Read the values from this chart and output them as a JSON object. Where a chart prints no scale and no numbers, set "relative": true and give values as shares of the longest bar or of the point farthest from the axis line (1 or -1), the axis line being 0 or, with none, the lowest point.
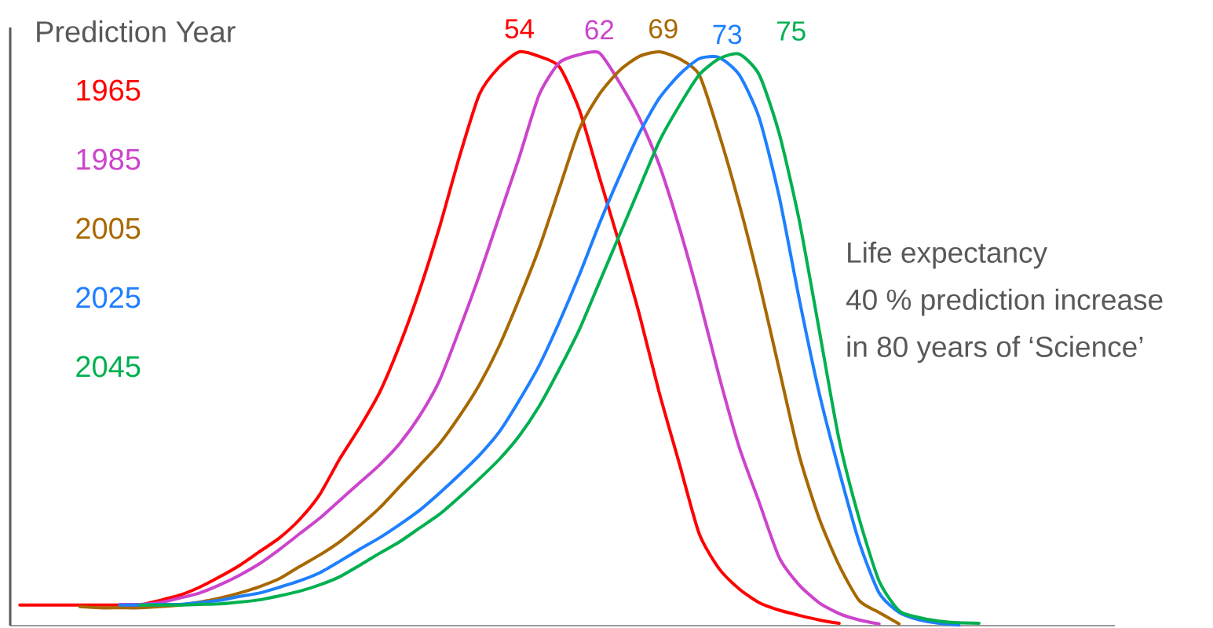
{
  "chart_data": {
    "type": "line",
    "relative": true,
    "legend": "top left",
    "legend_title": "Prediction Year",
    "categories": [
      null,
      null,
      null,
      null,
      null,
      null,
      null,
      null,
      null,
      null,
      null,
      null,
      null,
      null,
      null,
      null,
      null,
      null,
      null,
      null,
      null,
      null,
      null,
      null,
      null,
      null,
      null,
      null,
      null,
      null,
      null,
      null,
      null,
      null,
      null,
      null,
      null,
      null,
      null,
      null,
      null,
      null,
      null,
      null,
      null,
      null,
      null,
      null,
      null
    ],
    "series": [
      {
        "name": "1965",
        "color": "#ff0000",
        "values": [
          0.036,
          0.036,
          0.036,
          0.036,
          0.036,
          0.036,
          0.036,
          0.044,
          0.053,
          0.067,
          0.085,
          0.105,
          0.129,
          0.153,
          0.185,
          0.228,
          0.29,
          0.345,
          0.406,
          0.488,
          0.584,
          0.694,
          0.817,
          0.926,
          0.974,
          1.0,
          0.992,
          0.974,
          0.899,
          0.782,
          0.666,
          0.543,
          0.406,
          0.283,
          0.16,
          0.099,
          0.064,
          0.04,
          0.027,
          0.018,
          0.01,
          0.004,
          null,
          null,
          null,
          null,
          null,
          null,
          null
        ]
      },
      {
        "name": "1985",
        "color": "#cc44cc",
        "values": [
          null,
          null,
          null,
          null,
          null,
          0.037,
          0.037,
          0.04,
          0.048,
          0.057,
          0.071,
          0.088,
          0.108,
          0.133,
          0.16,
          0.187,
          0.218,
          0.249,
          0.28,
          0.317,
          0.365,
          0.427,
          0.516,
          0.611,
          0.714,
          0.817,
          0.926,
          0.981,
          0.995,
          0.998,
          0.947,
          0.885,
          0.803,
          0.694,
          0.57,
          0.434,
          0.311,
          0.215,
          0.119,
          0.071,
          0.04,
          0.021,
          0.01,
          0.003,
          null,
          null,
          null,
          null,
          null
        ]
      },
      {
        "name": "2005",
        "color": "#a86800",
        "values": [
          null,
          null,
          null,
          0.033,
          0.031,
          0.031,
          0.031,
          0.033,
          0.036,
          0.041,
          0.048,
          0.057,
          0.068,
          0.082,
          0.103,
          0.123,
          0.146,
          0.174,
          0.205,
          0.242,
          0.279,
          0.317,
          0.365,
          0.42,
          0.488,
          0.57,
          0.659,
          0.762,
          0.865,
          0.926,
          0.967,
          0.992,
          1.0,
          0.988,
          0.96,
          0.856,
          0.735,
          0.598,
          0.447,
          0.297,
          0.187,
          0.105,
          0.044,
          0.023,
          0.003,
          null,
          null,
          null,
          null
        ]
      },
      {
        "name": "2025",
        "color": "#1e7fff",
        "values": [
          null,
          null,
          null,
          null,
          null,
          0.036,
          0.036,
          0.037,
          0.037,
          0.04,
          0.044,
          0.051,
          0.057,
          0.067,
          0.078,
          0.092,
          0.112,
          0.133,
          0.153,
          0.176,
          0.201,
          0.231,
          0.263,
          0.297,
          0.338,
          0.393,
          0.454,
          0.529,
          0.611,
          0.7,
          0.782,
          0.858,
          0.919,
          0.96,
          0.988,
          0.99,
          0.96,
          0.885,
          0.748,
          0.57,
          0.406,
          0.27,
          0.146,
          0.057,
          0.023,
          0.01,
          0.004,
          0.001,
          null
        ]
      },
      {
        "name": "2045",
        "color": "#00b050",
        "values": [
          null,
          null,
          null,
          null,
          null,
          null,
          0.036,
          0.036,
          0.036,
          0.037,
          0.038,
          0.041,
          0.045,
          0.052,
          0.06,
          0.071,
          0.085,
          0.105,
          0.126,
          0.146,
          0.17,
          0.194,
          0.224,
          0.256,
          0.29,
          0.331,
          0.383,
          0.447,
          0.516,
          0.598,
          0.68,
          0.762,
          0.844,
          0.906,
          0.96,
          0.988,
          0.996,
          0.96,
          0.858,
          0.707,
          0.516,
          0.324,
          0.187,
          0.078,
          0.026,
          0.014,
          0.008,
          0.005,
          0.004
        ]
      }
    ],
    "annotations": [
      "54",
      "62",
      "69",
      "73",
      "75",
      "Life expectancy",
      "40 % prediction increase",
      "in 80 years of ‘Science’"
    ]
  }
}
